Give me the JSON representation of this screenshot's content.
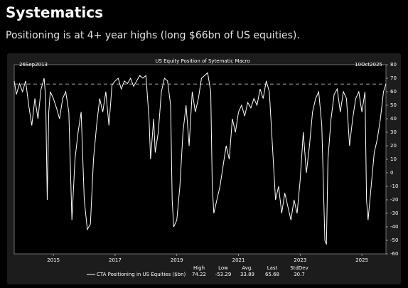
{
  "heading": "Systematics",
  "subheading": "Positioning is at 4+ year highs (long $66bn of US equities).",
  "chart_data": {
    "type": "line",
    "title": "US Equity Position of Sytematic Macro",
    "start_label": "26Sep2013",
    "end_label": "10Oct2025",
    "x": [
      2013.73,
      2013.8,
      2013.9,
      2014.0,
      2014.1,
      2014.2,
      2014.3,
      2014.4,
      2014.5,
      2014.6,
      2014.7,
      2014.75,
      2014.8,
      2014.85,
      2014.9,
      2015.0,
      2015.1,
      2015.2,
      2015.3,
      2015.4,
      2015.5,
      2015.6,
      2015.7,
      2015.8,
      2015.9,
      2016.0,
      2016.1,
      2016.2,
      2016.3,
      2016.4,
      2016.5,
      2016.6,
      2016.7,
      2016.8,
      2016.9,
      2017.0,
      2017.1,
      2017.2,
      2017.3,
      2017.4,
      2017.5,
      2017.6,
      2017.7,
      2017.8,
      2017.9,
      2018.0,
      2018.1,
      2018.15,
      2018.25,
      2018.3,
      2018.4,
      2018.5,
      2018.6,
      2018.7,
      2018.8,
      2018.85,
      2018.9,
      2019.0,
      2019.1,
      2019.2,
      2019.3,
      2019.4,
      2019.5,
      2019.6,
      2019.7,
      2019.8,
      2019.9,
      2020.0,
      2020.1,
      2020.15,
      2020.2,
      2020.3,
      2020.4,
      2020.5,
      2020.6,
      2020.7,
      2020.8,
      2020.9,
      2021.0,
      2021.1,
      2021.2,
      2021.3,
      2021.4,
      2021.5,
      2021.6,
      2021.7,
      2021.8,
      2021.9,
      2022.0,
      2022.1,
      2022.2,
      2022.3,
      2022.4,
      2022.5,
      2022.6,
      2022.7,
      2022.8,
      2022.9,
      2023.0,
      2023.1,
      2023.2,
      2023.3,
      2023.4,
      2023.5,
      2023.6,
      2023.7,
      2023.8,
      2023.85,
      2023.9,
      2024.0,
      2024.1,
      2024.2,
      2024.3,
      2024.4,
      2024.5,
      2024.6,
      2024.7,
      2024.8,
      2024.9,
      2025.0,
      2025.1,
      2025.15,
      2025.2,
      2025.3,
      2025.4,
      2025.5,
      2025.6,
      2025.7,
      2025.78
    ],
    "series": [
      {
        "name": "CTA Positioning in US Equities ($bn)",
        "color": "#ffffff",
        "values": [
          68,
          58,
          66,
          60,
          68,
          50,
          35,
          55,
          40,
          62,
          70,
          55,
          -20,
          45,
          60,
          55,
          48,
          40,
          55,
          60,
          45,
          -35,
          10,
          30,
          45,
          -20,
          -42,
          -38,
          10,
          35,
          55,
          45,
          60,
          35,
          65,
          68,
          70,
          62,
          68,
          66,
          70,
          64,
          68,
          72,
          70,
          72,
          40,
          10,
          40,
          15,
          30,
          60,
          70,
          68,
          50,
          -20,
          -40,
          -35,
          -10,
          30,
          50,
          20,
          60,
          45,
          55,
          70,
          72,
          74,
          60,
          -10,
          -30,
          -20,
          -10,
          5,
          20,
          10,
          40,
          30,
          45,
          50,
          42,
          52,
          48,
          55,
          50,
          62,
          55,
          68,
          60,
          20,
          -20,
          -10,
          -30,
          -15,
          -25,
          -35,
          -20,
          -30,
          -5,
          30,
          0,
          20,
          45,
          55,
          60,
          35,
          -50,
          -53,
          10,
          40,
          58,
          62,
          45,
          60,
          55,
          20,
          40,
          55,
          60,
          45,
          60,
          -20,
          -35,
          -10,
          15,
          25,
          40,
          60,
          65.68
        ]
      }
    ],
    "xlim": [
      2013.73,
      2025.78
    ],
    "xticks": [
      2015,
      2017,
      2019,
      2021,
      2023,
      2025
    ],
    "ylim": [
      -60,
      80
    ],
    "yticks": [
      -60,
      -50,
      -40,
      -30,
      -20,
      -10,
      0,
      10,
      20,
      30,
      40,
      50,
      60,
      70,
      80
    ],
    "stats": [
      {
        "name": "High",
        "value": 74.22
      },
      {
        "name": "Low",
        "value": -53.29
      },
      {
        "name": "Avg.",
        "value": 33.89
      },
      {
        "name": "Last",
        "value": 65.68
      },
      {
        "name": "StdDev",
        "value": 30.7
      }
    ]
  }
}
